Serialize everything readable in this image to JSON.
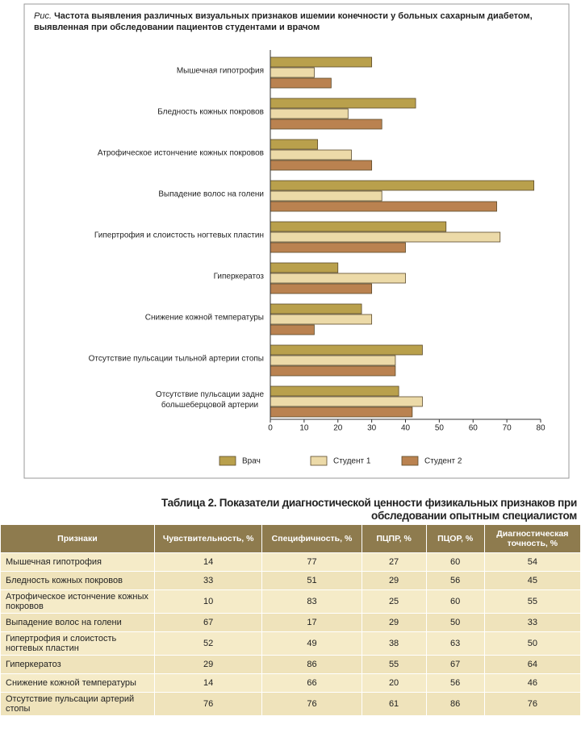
{
  "chart_data": {
    "type": "barh",
    "figure_label": "Рис.",
    "title": "Частота выявления различных визуальных признаков ишемии конечности у больных сахарным диабетом, выявленная при обследовании пациентов студентами и врачом",
    "categories": [
      "Мышечная гипотрофия",
      "Бледность кожных покровов",
      "Атрофическое истончение кожных покровов",
      "Выпадение волос на голени",
      "Гипертрофия и слоистость ногтевых пластин",
      "Гиперкератоз",
      "Снижение кожной температуры",
      "Отсутствие пульсации тыльной артерии стопы",
      "Отсутствие пульсации задне\nбольшеберцовой артерии"
    ],
    "series": [
      {
        "name": "Врач",
        "color": "#b9a04c",
        "values": [
          30,
          43,
          14,
          78,
          52,
          20,
          27,
          45,
          38
        ]
      },
      {
        "name": "Студент 1",
        "color": "#ecdaa8",
        "values": [
          13,
          23,
          24,
          33,
          68,
          40,
          30,
          37,
          45
        ]
      },
      {
        "name": "Студент 2",
        "color": "#ba8250",
        "values": [
          18,
          33,
          30,
          67,
          40,
          30,
          13,
          37,
          42
        ]
      }
    ],
    "xlim": [
      0,
      80
    ],
    "xticks": [
      0,
      10,
      20,
      30,
      40,
      50,
      60,
      70,
      80
    ],
    "legend": "bottom"
  },
  "table": {
    "title": "Таблица 2. Показатели диагностической ценности физикальных признаков при обследовании опытным специалистом",
    "headers": [
      "Признаки",
      "Чувствительность, %",
      "Специфичность, %",
      "ПЦПР, %",
      "ПЦОР, %",
      "Диагностическая точность, %"
    ],
    "rows": [
      [
        "Мышечная гипотрофия",
        "14",
        "77",
        "27",
        "60",
        "54"
      ],
      [
        "Бледность кожных покровов",
        "33",
        "51",
        "29",
        "56",
        "45"
      ],
      [
        "Атрофическое истончение кожных покровов",
        "10",
        "83",
        "25",
        "60",
        "55"
      ],
      [
        "Выпадение волос на голени",
        "67",
        "17",
        "29",
        "50",
        "33"
      ],
      [
        "Гипертрофия и слоистость ногтевых пластин",
        "52",
        "49",
        "38",
        "63",
        "50"
      ],
      [
        "Гиперкератоз",
        "29",
        "86",
        "55",
        "67",
        "64"
      ],
      [
        "Снижение кожной температуры",
        "14",
        "66",
        "20",
        "56",
        "46"
      ],
      [
        "Отсутствие пульсации артерий стопы",
        "76",
        "76",
        "61",
        "86",
        "76"
      ]
    ]
  }
}
